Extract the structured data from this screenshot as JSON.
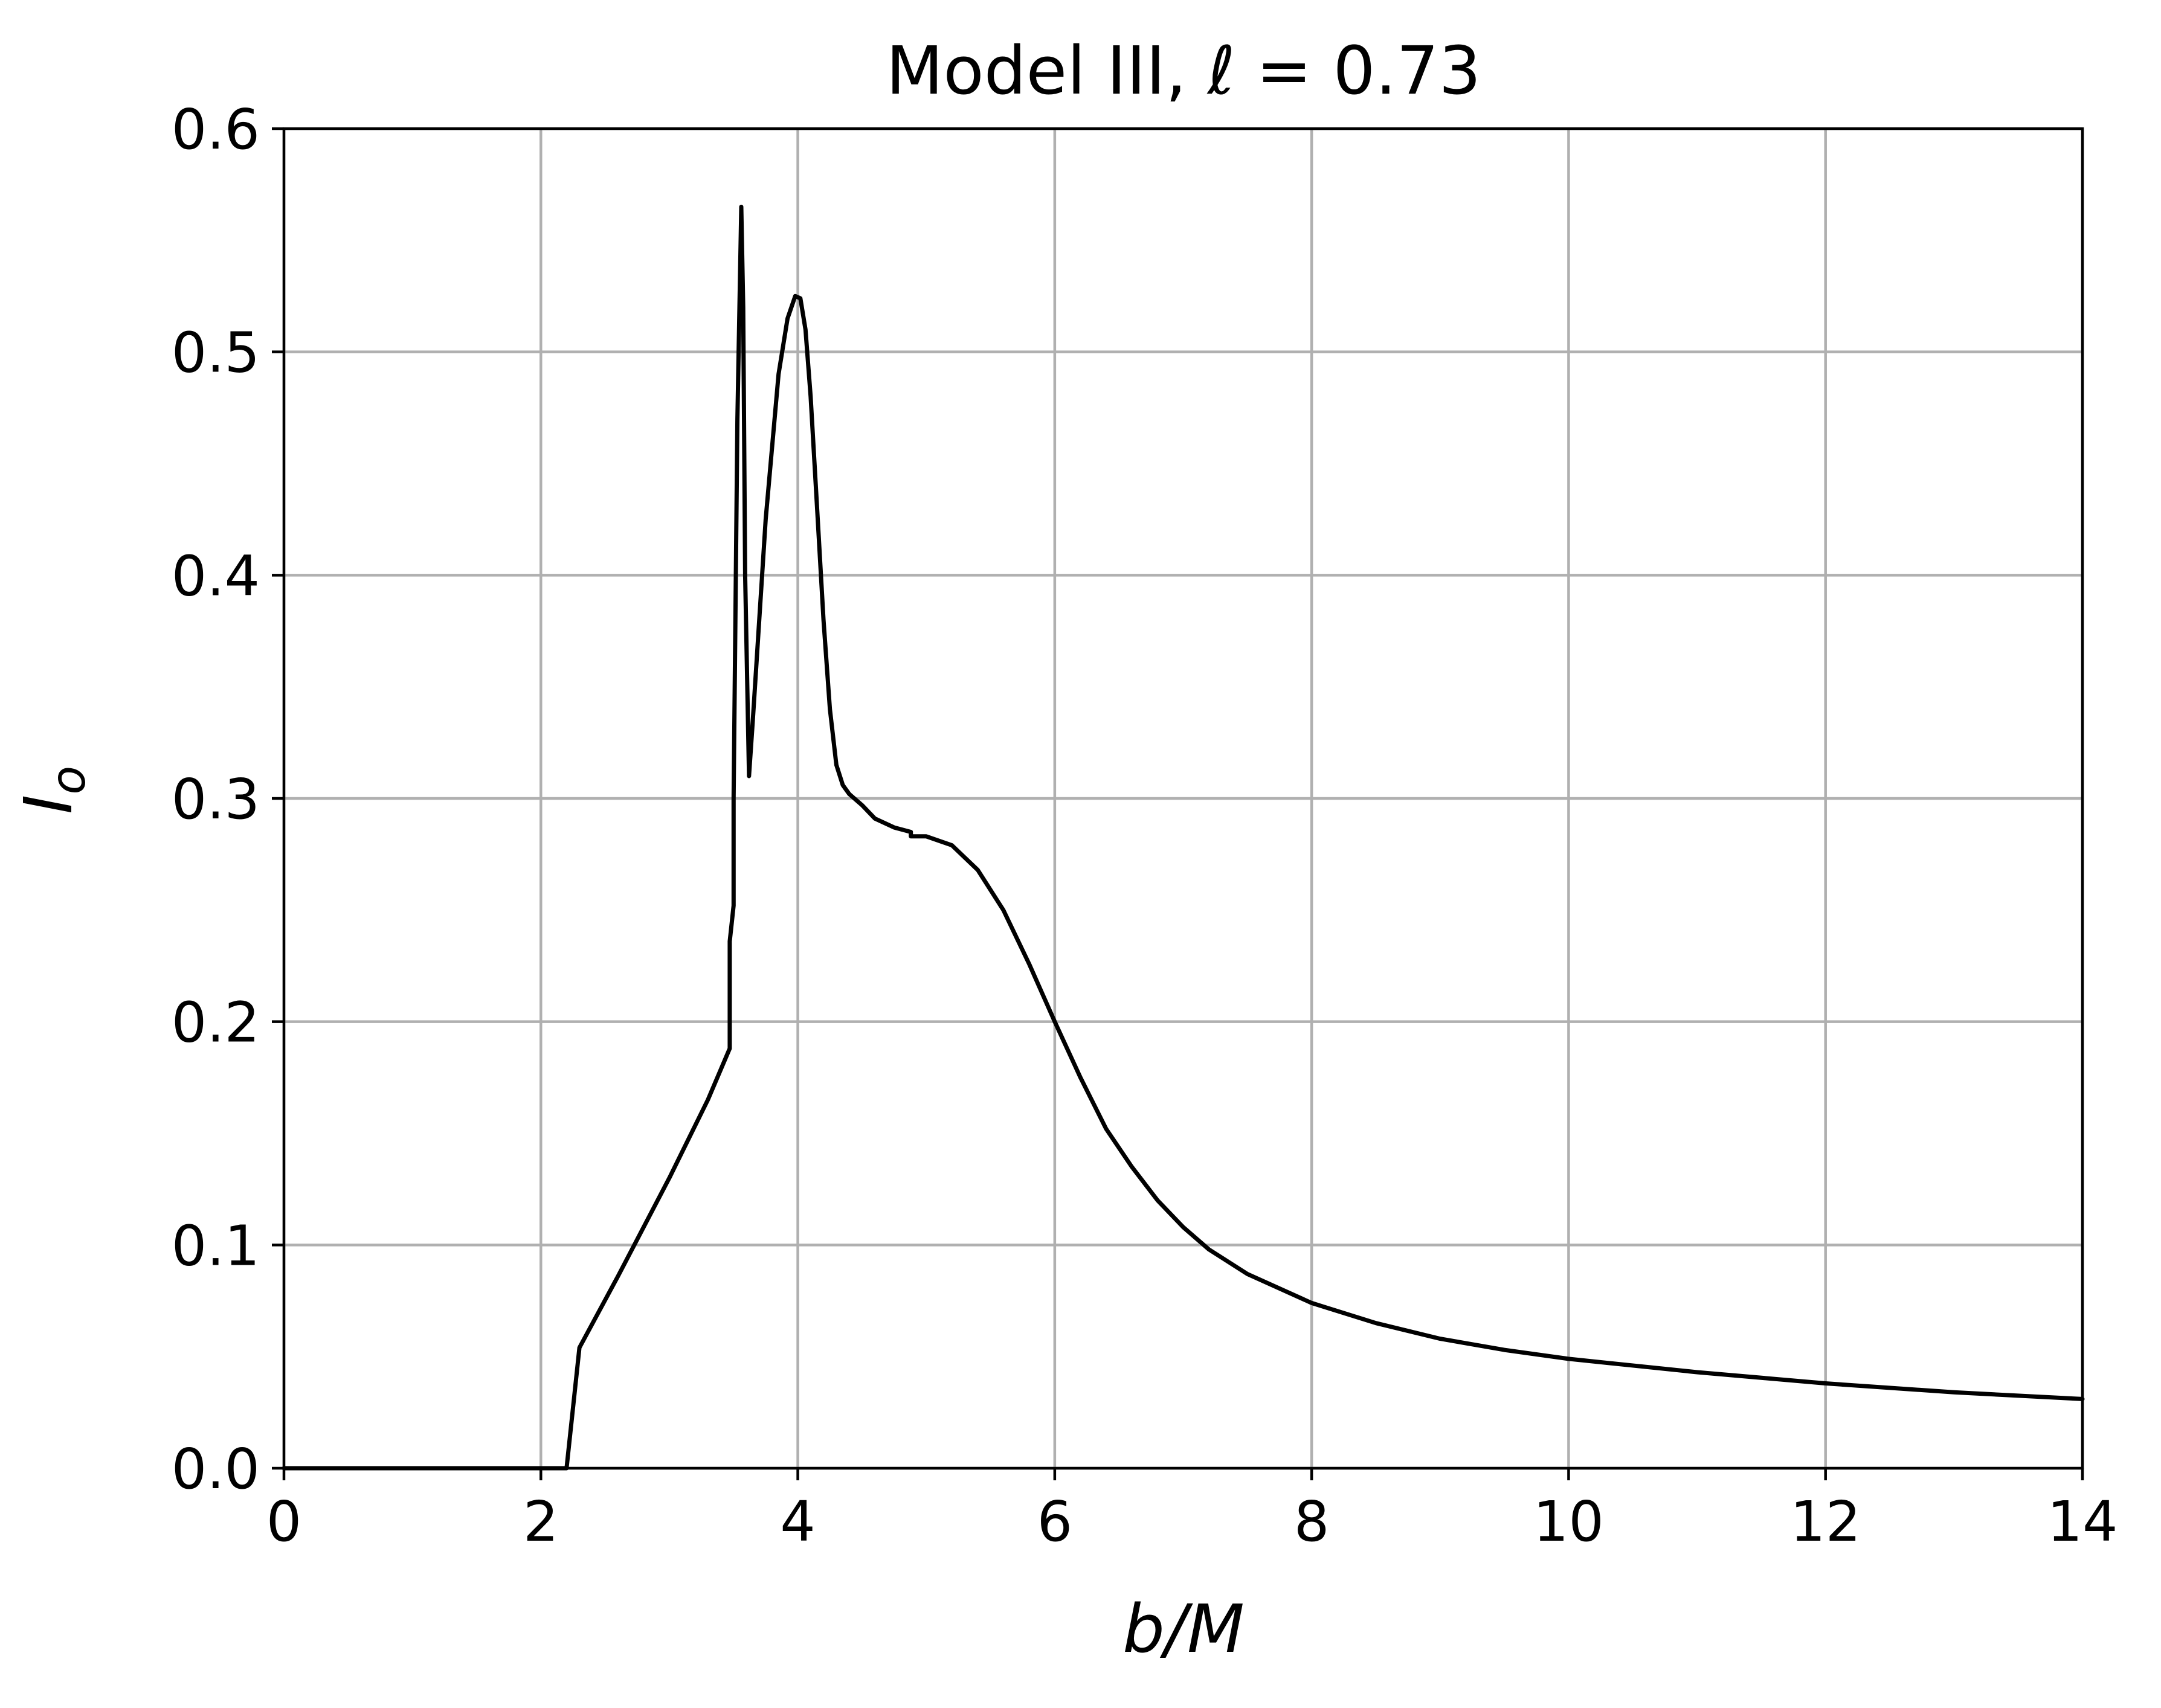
{
  "chart_data": {
    "type": "line",
    "title": "Model III, ℓ = 0.73",
    "xlabel": "b/M",
    "ylabel": "I",
    "ylabel_sub": "o",
    "xlim": [
      0,
      14
    ],
    "ylim": [
      0,
      0.6
    ],
    "xticks": [
      0,
      2,
      4,
      6,
      8,
      10,
      12,
      14
    ],
    "yticks": [
      0.0,
      0.1,
      0.2,
      0.3,
      0.4,
      0.5,
      0.6
    ],
    "xtick_labels": [
      "0",
      "2",
      "4",
      "6",
      "8",
      "10",
      "12",
      "14"
    ],
    "ytick_labels": [
      "0.0",
      "0.1",
      "0.2",
      "0.3",
      "0.4",
      "0.5",
      "0.6"
    ],
    "grid": true,
    "legend": "none",
    "series": [
      {
        "color": "#000000",
        "x": [
          0,
          2.0,
          2.2,
          2.3,
          2.6,
          3.0,
          3.3,
          3.47,
          3.47,
          3.5,
          3.5,
          3.53,
          3.56,
          3.575,
          3.59,
          3.62,
          3.65,
          3.75,
          3.85,
          3.92,
          3.98,
          4.02,
          4.06,
          4.1,
          4.15,
          4.2,
          4.25,
          4.3,
          4.35,
          4.4,
          4.5,
          4.6,
          4.75,
          4.88,
          4.88,
          5.0,
          5.2,
          5.4,
          5.6,
          5.8,
          6.0,
          6.2,
          6.4,
          6.6,
          6.8,
          7.0,
          7.2,
          7.5,
          8.0,
          8.5,
          9.0,
          9.5,
          10.0,
          11.0,
          12.0,
          13.0,
          14.0
        ],
        "y": [
          0,
          0,
          0,
          0.054,
          0.086,
          0.13,
          0.165,
          0.188,
          0.236,
          0.252,
          0.3,
          0.47,
          0.565,
          0.52,
          0.4,
          0.31,
          0.335,
          0.425,
          0.49,
          0.515,
          0.525,
          0.524,
          0.51,
          0.48,
          0.43,
          0.38,
          0.34,
          0.315,
          0.306,
          0.302,
          0.297,
          0.291,
          0.287,
          0.285,
          0.283,
          0.283,
          0.279,
          0.268,
          0.25,
          0.226,
          0.2,
          0.175,
          0.152,
          0.135,
          0.12,
          0.108,
          0.098,
          0.087,
          0.074,
          0.065,
          0.058,
          0.053,
          0.049,
          0.043,
          0.038,
          0.034,
          0.031
        ]
      }
    ]
  }
}
